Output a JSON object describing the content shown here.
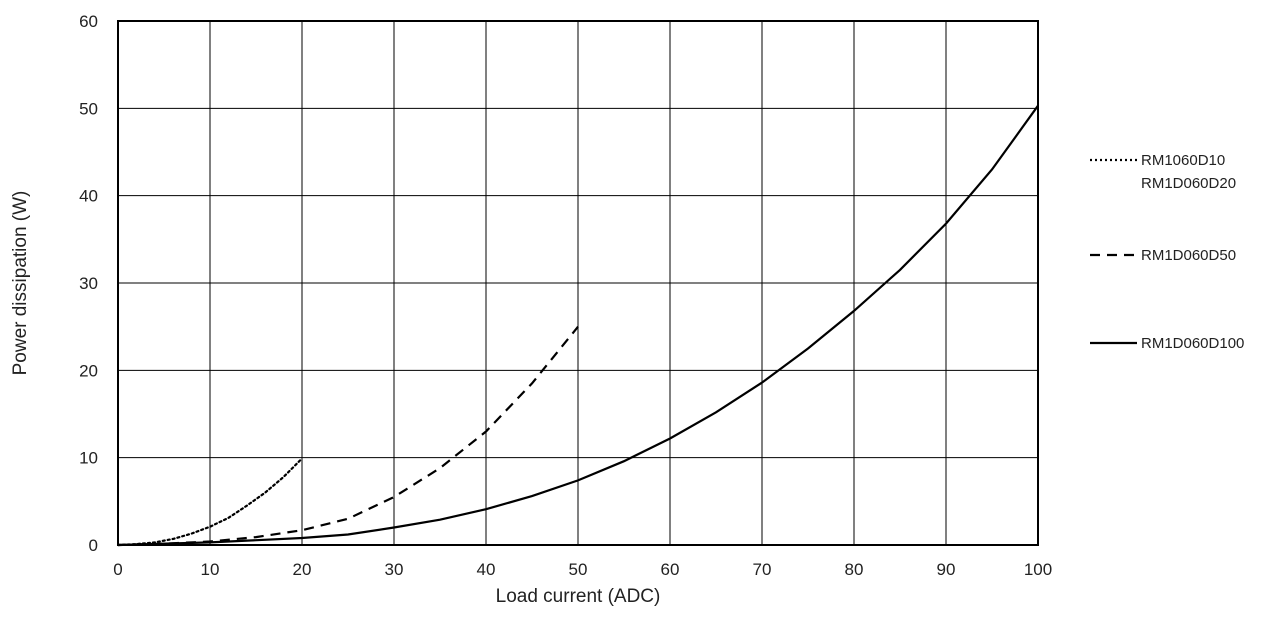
{
  "chart_data": {
    "type": "line",
    "title": "",
    "xlabel": "Load current (ADC)",
    "ylabel": "Power dissipation (W)",
    "xlim": [
      0,
      100
    ],
    "ylim": [
      0,
      60
    ],
    "x_ticks": [
      0,
      10,
      20,
      30,
      40,
      50,
      60,
      70,
      80,
      90,
      100
    ],
    "y_ticks": [
      0,
      10,
      20,
      30,
      40,
      50,
      60
    ],
    "grid": true,
    "legend_position": "right",
    "series": [
      {
        "legend_lines": [
          "RM1060D10",
          "RM1D060D20"
        ],
        "style": "dotted",
        "color": "#000000",
        "points": [
          [
            0,
            0
          ],
          [
            2,
            0.1
          ],
          [
            4,
            0.3
          ],
          [
            6,
            0.7
          ],
          [
            8,
            1.3
          ],
          [
            10,
            2.1
          ],
          [
            12,
            3.1
          ],
          [
            14,
            4.5
          ],
          [
            16,
            6.0
          ],
          [
            18,
            7.8
          ],
          [
            20,
            9.9
          ]
        ]
      },
      {
        "legend_lines": [
          "RM1D060D50"
        ],
        "style": "dashed",
        "color": "#000000",
        "points": [
          [
            0,
            0
          ],
          [
            5,
            0.15
          ],
          [
            10,
            0.4
          ],
          [
            15,
            0.9
          ],
          [
            20,
            1.7
          ],
          [
            25,
            3.0
          ],
          [
            30,
            5.5
          ],
          [
            35,
            8.8
          ],
          [
            40,
            13.0
          ],
          [
            45,
            18.5
          ],
          [
            50,
            25.0
          ]
        ]
      },
      {
        "legend_lines": [
          "RM1D060D100"
        ],
        "style": "solid",
        "color": "#000000",
        "points": [
          [
            0,
            0
          ],
          [
            10,
            0.3
          ],
          [
            20,
            0.8
          ],
          [
            25,
            1.2
          ],
          [
            30,
            2.0
          ],
          [
            35,
            2.9
          ],
          [
            40,
            4.1
          ],
          [
            45,
            5.6
          ],
          [
            50,
            7.4
          ],
          [
            55,
            9.6
          ],
          [
            60,
            12.2
          ],
          [
            65,
            15.2
          ],
          [
            70,
            18.6
          ],
          [
            75,
            22.5
          ],
          [
            80,
            26.8
          ],
          [
            85,
            31.5
          ],
          [
            90,
            36.8
          ],
          [
            95,
            43.0
          ],
          [
            100,
            50.3
          ]
        ]
      }
    ]
  }
}
